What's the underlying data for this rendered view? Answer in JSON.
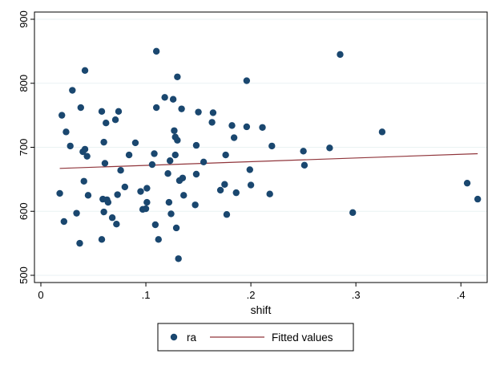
{
  "chart_data": {
    "type": "scatter",
    "title": "",
    "xlabel": "shift",
    "ylabel": "",
    "xlim": [
      0,
      0.42
    ],
    "ylim": [
      500,
      900
    ],
    "x_ticks": [
      0,
      0.1,
      0.2,
      0.3,
      0.4
    ],
    "x_tick_labels": [
      "0",
      ".1",
      ".2",
      ".3",
      ".4"
    ],
    "y_ticks": [
      500,
      600,
      700,
      800,
      900
    ],
    "y_tick_labels": [
      "500",
      "600",
      "700",
      "800",
      "900"
    ],
    "grid": "horizontal",
    "legend_position": "bottom",
    "colors": {
      "points": "#1a476f",
      "fit_line": "#90353b",
      "background": "#ffffff",
      "grid": "#eaf2f3",
      "frame": "#000000"
    },
    "series": [
      {
        "name": "ra",
        "kind": "scatter",
        "points": [
          [
            0.018,
            628
          ],
          [
            0.02,
            750
          ],
          [
            0.022,
            584
          ],
          [
            0.024,
            724
          ],
          [
            0.028,
            702
          ],
          [
            0.03,
            789
          ],
          [
            0.034,
            597
          ],
          [
            0.037,
            550
          ],
          [
            0.038,
            762
          ],
          [
            0.04,
            693
          ],
          [
            0.041,
            647
          ],
          [
            0.042,
            697
          ],
          [
            0.042,
            820
          ],
          [
            0.044,
            686
          ],
          [
            0.045,
            625
          ],
          [
            0.058,
            756
          ],
          [
            0.058,
            556
          ],
          [
            0.059,
            619
          ],
          [
            0.06,
            708
          ],
          [
            0.06,
            599
          ],
          [
            0.061,
            675
          ],
          [
            0.062,
            738
          ],
          [
            0.063,
            618
          ],
          [
            0.064,
            614
          ],
          [
            0.068,
            590
          ],
          [
            0.071,
            743
          ],
          [
            0.072,
            580
          ],
          [
            0.073,
            626
          ],
          [
            0.074,
            756
          ],
          [
            0.076,
            664
          ],
          [
            0.08,
            638
          ],
          [
            0.084,
            688
          ],
          [
            0.09,
            707
          ],
          [
            0.095,
            631
          ],
          [
            0.097,
            603
          ],
          [
            0.1,
            604
          ],
          [
            0.101,
            614
          ],
          [
            0.101,
            636
          ],
          [
            0.106,
            673
          ],
          [
            0.108,
            690
          ],
          [
            0.109,
            579
          ],
          [
            0.11,
            850
          ],
          [
            0.11,
            762
          ],
          [
            0.112,
            556
          ],
          [
            0.118,
            778
          ],
          [
            0.121,
            659
          ],
          [
            0.122,
            614
          ],
          [
            0.123,
            679
          ],
          [
            0.124,
            596
          ],
          [
            0.126,
            775
          ],
          [
            0.127,
            726
          ],
          [
            0.128,
            716
          ],
          [
            0.128,
            688
          ],
          [
            0.129,
            574
          ],
          [
            0.13,
            810
          ],
          [
            0.13,
            711
          ],
          [
            0.131,
            526
          ],
          [
            0.132,
            648
          ],
          [
            0.134,
            760
          ],
          [
            0.135,
            652
          ],
          [
            0.136,
            625
          ],
          [
            0.147,
            610
          ],
          [
            0.148,
            703
          ],
          [
            0.148,
            658
          ],
          [
            0.15,
            755
          ],
          [
            0.155,
            677
          ],
          [
            0.163,
            739
          ],
          [
            0.164,
            754
          ],
          [
            0.171,
            633
          ],
          [
            0.175,
            642
          ],
          [
            0.176,
            688
          ],
          [
            0.177,
            595
          ],
          [
            0.182,
            734
          ],
          [
            0.184,
            715
          ],
          [
            0.186,
            629
          ],
          [
            0.196,
            732
          ],
          [
            0.196,
            804
          ],
          [
            0.199,
            665
          ],
          [
            0.2,
            641
          ],
          [
            0.211,
            731
          ],
          [
            0.218,
            627
          ],
          [
            0.22,
            702
          ],
          [
            0.25,
            694
          ],
          [
            0.251,
            672
          ],
          [
            0.275,
            699
          ],
          [
            0.285,
            845
          ],
          [
            0.297,
            598
          ],
          [
            0.325,
            724
          ],
          [
            0.406,
            644
          ],
          [
            0.416,
            619
          ]
        ]
      },
      {
        "name": "Fitted values",
        "kind": "line",
        "points": [
          [
            0.018,
            667
          ],
          [
            0.416,
            690
          ]
        ]
      }
    ],
    "legend": [
      "ra",
      "Fitted values"
    ]
  }
}
